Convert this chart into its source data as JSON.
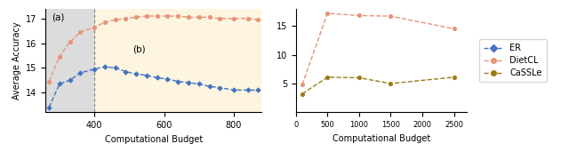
{
  "left_plot": {
    "er_x": [
      270,
      300,
      330,
      360,
      400,
      430,
      460,
      490,
      520,
      550,
      580,
      610,
      640,
      670,
      700,
      730,
      760,
      800,
      840,
      870
    ],
    "er_y": [
      13.4,
      14.35,
      14.5,
      14.8,
      14.95,
      15.05,
      15.0,
      14.85,
      14.75,
      14.7,
      14.6,
      14.55,
      14.45,
      14.4,
      14.35,
      14.25,
      14.2,
      14.1,
      14.1,
      14.1
    ],
    "dietcl_x": [
      270,
      300,
      330,
      360,
      400,
      430,
      460,
      490,
      520,
      550,
      580,
      610,
      640,
      670,
      700,
      730,
      760,
      800,
      840,
      870
    ],
    "dietcl_y": [
      14.45,
      15.45,
      16.05,
      16.45,
      16.65,
      16.85,
      16.95,
      17.0,
      17.05,
      17.1,
      17.1,
      17.1,
      17.1,
      17.05,
      17.05,
      17.05,
      17.0,
      17.0,
      17.0,
      16.95
    ],
    "region_a_end": 400,
    "vline_x": 400,
    "label_a": "(a)",
    "label_b": "(b)",
    "xlabel": "Computational Budget",
    "ylabel": "Average Accuracy",
    "ylim": [
      13.2,
      17.4
    ],
    "xlim": [
      260,
      880
    ],
    "yticks": [
      14,
      15,
      16,
      17
    ],
    "xticks": [
      400,
      600,
      800
    ]
  },
  "right_plot": {
    "dietcl_x": [
      100,
      500,
      1000,
      1500,
      2500
    ],
    "dietcl_y": [
      4.8,
      17.2,
      16.8,
      16.7,
      14.5
    ],
    "cassle_x": [
      100,
      500,
      1000,
      1500,
      2500
    ],
    "cassle_y": [
      3.2,
      6.1,
      6.0,
      5.0,
      6.1
    ],
    "xlabel": "Computational Budget",
    "ylim": [
      0,
      18
    ],
    "xlim": [
      0,
      2700
    ],
    "yticks": [
      5,
      10,
      15
    ],
    "xticks": [
      0,
      500,
      1000,
      1500,
      2000,
      2500
    ]
  },
  "legend": {
    "er_label": "ER",
    "dietcl_label": "DietCL",
    "cassle_label": "CaSSLe"
  },
  "colors": {
    "er": "#4472C4",
    "dietcl": "#E8937A",
    "cassle": "#9B7A1A",
    "region_a_bg": "#DCDCDC",
    "region_b_bg": "#FDF5E0"
  },
  "figsize": [
    6.4,
    1.62
  ],
  "dpi": 100
}
